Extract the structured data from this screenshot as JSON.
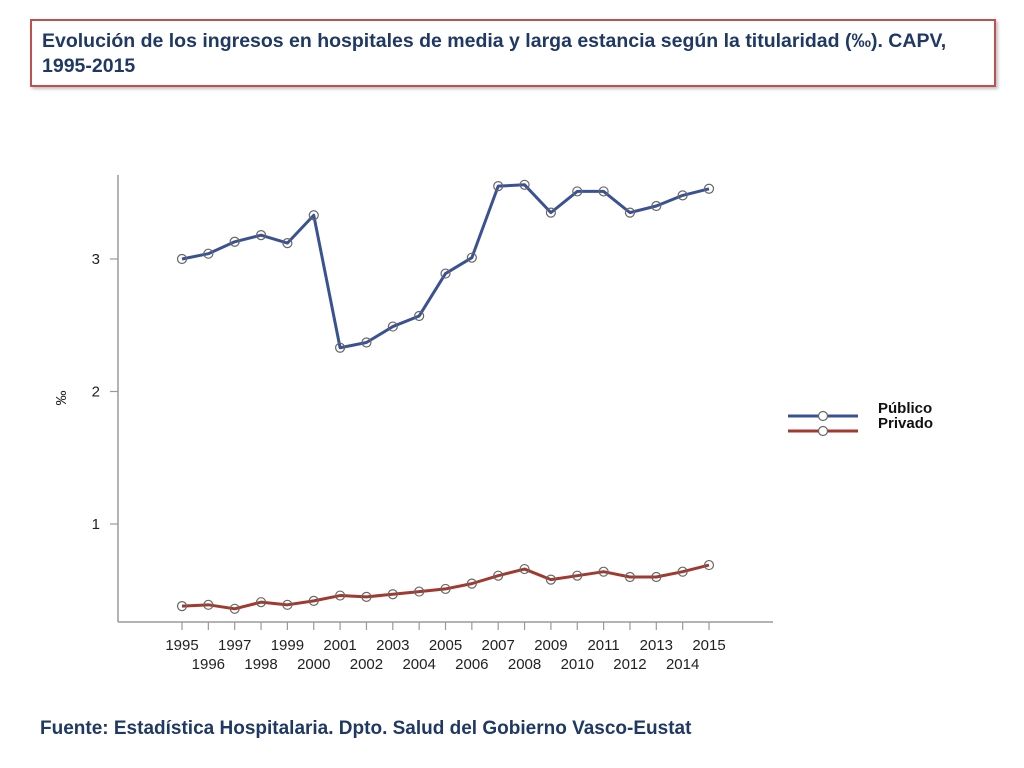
{
  "title": "Evolución de los ingresos en hospitales de media y larga estancia según la titularidad (‰). CAPV, 1995-2015",
  "source": "Fuente: Estadística Hospitalaria. Dpto. Salud del Gobierno Vasco-Eustat",
  "chart_data": {
    "type": "line",
    "title": "Evolución de los ingresos en hospitales de media y larga estancia según la titularidad (‰). CAPV, 1995-2015",
    "xlabel": "",
    "ylabel": "‰",
    "x": [
      "1995",
      "1996",
      "1997",
      "1998",
      "1999",
      "2000",
      "2001",
      "2002",
      "2003",
      "2004",
      "2005",
      "2006",
      "2007",
      "2008",
      "2009",
      "2010",
      "2011",
      "2012",
      "2013",
      "2014",
      "2015"
    ],
    "yticks": [
      "1",
      "2",
      "3"
    ],
    "ylim": [
      0.27,
      3.64
    ],
    "grid": false,
    "legend_position": "right",
    "series": [
      {
        "name": "Público",
        "color": "#3a5294",
        "values": [
          3.0,
          3.04,
          3.13,
          3.18,
          3.12,
          3.33,
          2.33,
          2.37,
          2.49,
          2.57,
          2.89,
          3.01,
          3.55,
          3.56,
          3.35,
          3.51,
          3.51,
          3.35,
          3.4,
          3.48,
          3.53
        ]
      },
      {
        "name": "Privado",
        "color": "#a0392f",
        "values": [
          0.38,
          0.39,
          0.36,
          0.41,
          0.39,
          0.42,
          0.46,
          0.45,
          0.47,
          0.49,
          0.51,
          0.55,
          0.61,
          0.66,
          0.58,
          0.61,
          0.64,
          0.6,
          0.6,
          0.64,
          0.69
        ]
      }
    ]
  }
}
